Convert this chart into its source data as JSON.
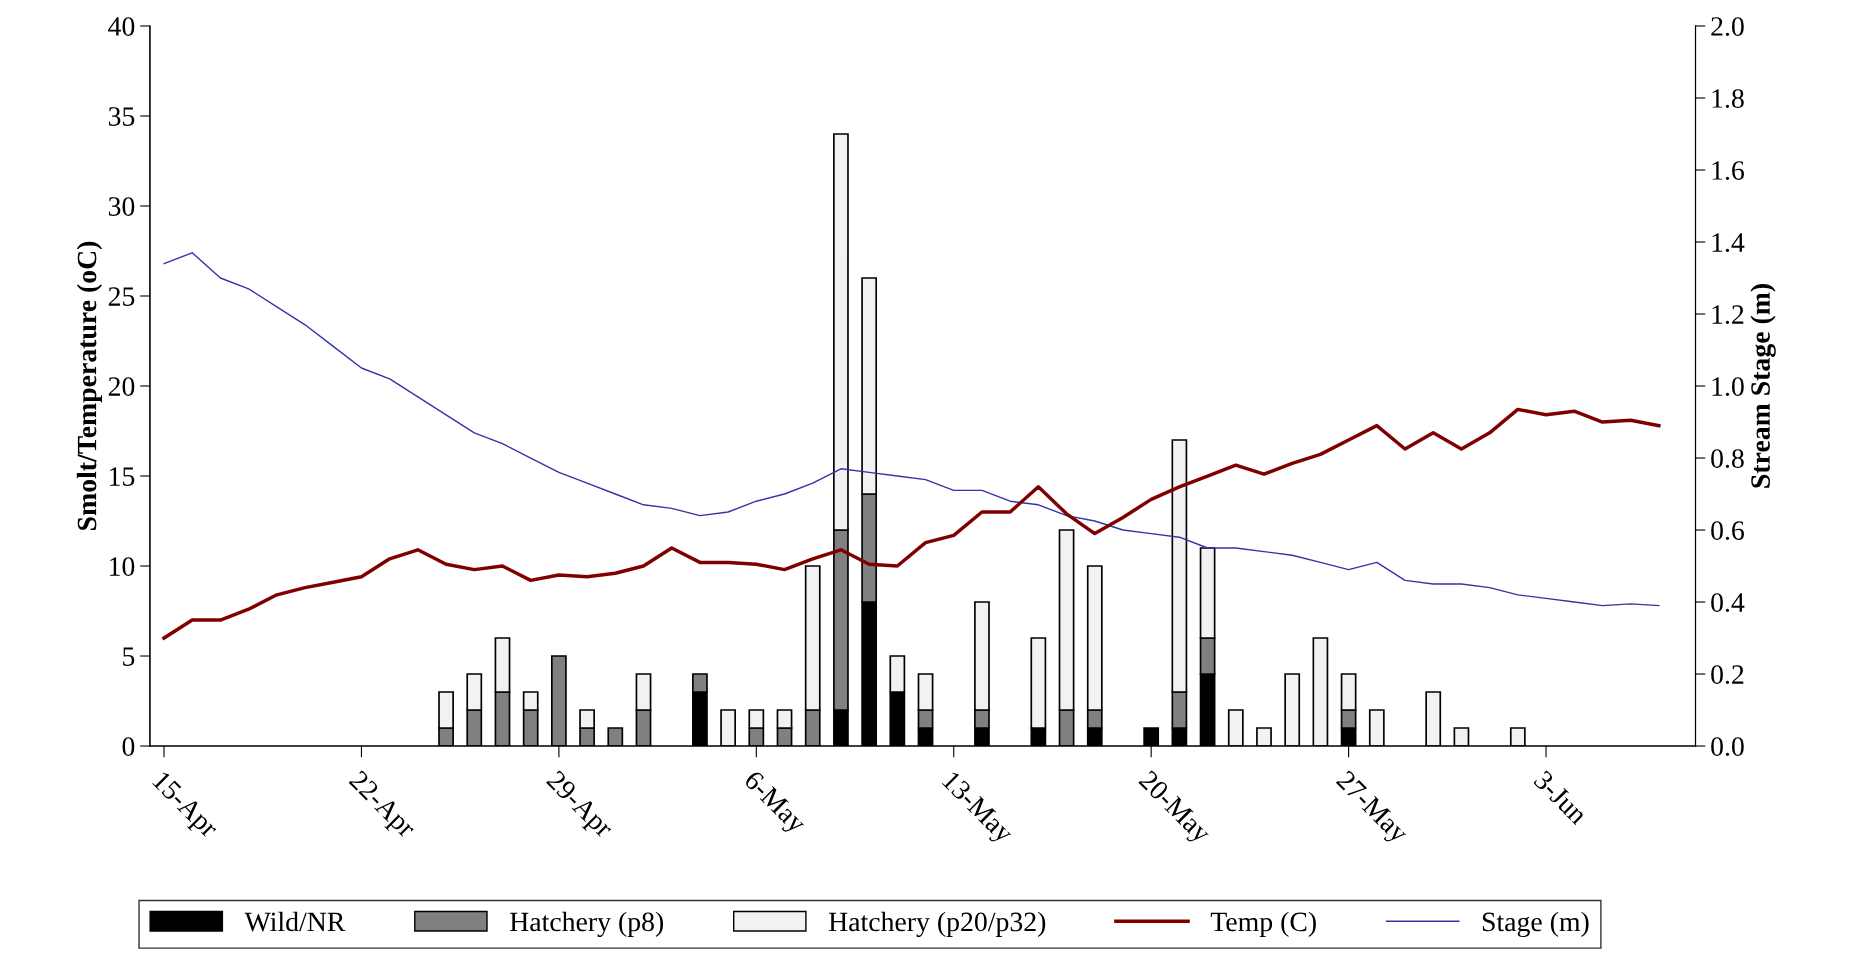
{
  "chart_data": {
    "type": "bar",
    "stacked": true,
    "ylabel": "Smolt/Temperature (oC)",
    "y2label": "Stream Stage (m)",
    "categories": [
      "15-Apr",
      null,
      null,
      null,
      null,
      null,
      null,
      "22-Apr",
      null,
      null,
      null,
      null,
      null,
      null,
      "29-Apr",
      null,
      null,
      null,
      null,
      null,
      null,
      "6-May",
      null,
      null,
      null,
      null,
      null,
      null,
      "13-May",
      null,
      null,
      null,
      null,
      null,
      null,
      "20-May",
      null,
      null,
      null,
      null,
      null,
      null,
      "27-May",
      null,
      null,
      null,
      null,
      null,
      null,
      "3-Jun",
      null,
      null,
      null,
      null
    ],
    "series": [
      {
        "name": "Wild/NR",
        "color": "#000000",
        "values": [
          null,
          null,
          null,
          null,
          null,
          null,
          null,
          null,
          null,
          null,
          null,
          null,
          null,
          null,
          null,
          null,
          null,
          null,
          null,
          3,
          null,
          null,
          null,
          null,
          2,
          8,
          3,
          1,
          null,
          1,
          null,
          1,
          null,
          1,
          null,
          1,
          1,
          4,
          null,
          null,
          null,
          null,
          1,
          null,
          null,
          null,
          null,
          null,
          null,
          null,
          null,
          null,
          null,
          null
        ]
      },
      {
        "name": "Hatchery (p8)",
        "color": "#808080",
        "values": [
          null,
          null,
          null,
          null,
          null,
          null,
          null,
          null,
          null,
          null,
          1,
          2,
          3,
          2,
          5,
          1,
          1,
          2,
          null,
          1,
          null,
          1,
          1,
          2,
          10,
          6,
          null,
          1,
          null,
          1,
          null,
          null,
          2,
          1,
          null,
          null,
          2,
          2,
          null,
          null,
          null,
          null,
          1,
          null,
          null,
          null,
          null,
          null,
          null,
          null,
          null,
          null,
          null,
          null
        ]
      },
      {
        "name": "Hatchery (p20/p32)",
        "color": "#f2f2f2",
        "values": [
          null,
          null,
          null,
          null,
          null,
          null,
          null,
          null,
          null,
          null,
          2,
          2,
          3,
          1,
          null,
          1,
          null,
          2,
          null,
          null,
          2,
          1,
          1,
          8,
          22,
          12,
          2,
          2,
          null,
          6,
          null,
          5,
          10,
          8,
          null,
          null,
          14,
          5,
          2,
          1,
          4,
          6,
          2,
          2,
          null,
          3,
          1,
          null,
          1,
          null,
          null,
          null,
          null,
          null
        ]
      },
      {
        "name": "Temp (C)",
        "type": "line",
        "color": "#800000",
        "values": [
          6.0,
          7.0,
          7.0,
          7.6,
          8.4,
          8.8,
          9.1,
          9.4,
          10.4,
          10.9,
          10.1,
          9.8,
          10.0,
          9.2,
          9.5,
          9.4,
          9.6,
          10.0,
          11.0,
          10.2,
          10.2,
          10.1,
          9.8,
          10.4,
          10.9,
          10.1,
          10.0,
          11.3,
          11.7,
          13.0,
          13.0,
          14.4,
          12.9,
          11.8,
          12.7,
          13.7,
          14.4,
          15.0,
          15.6,
          15.1,
          15.7,
          16.2,
          17.0,
          17.8,
          16.5,
          17.4,
          16.5,
          17.4,
          18.7,
          18.4,
          18.6,
          18.0,
          18.1,
          17.8
        ]
      },
      {
        "name": "Stage (m)",
        "type": "line",
        "axis": "y2",
        "color": "#3333aa",
        "values": [
          1.34,
          1.37,
          1.3,
          1.27,
          1.22,
          1.17,
          1.11,
          1.05,
          1.02,
          0.97,
          0.92,
          0.87,
          0.84,
          0.8,
          0.76,
          0.73,
          0.7,
          0.67,
          0.66,
          0.64,
          0.65,
          0.68,
          0.7,
          0.73,
          0.77,
          0.76,
          0.75,
          0.74,
          0.71,
          0.71,
          0.68,
          0.67,
          0.64,
          0.625,
          0.6,
          0.59,
          0.58,
          0.55,
          0.55,
          0.54,
          0.53,
          0.51,
          0.49,
          0.51,
          0.46,
          0.45,
          0.45,
          0.44,
          0.42,
          0.41,
          0.4,
          0.39,
          0.395,
          0.39
        ]
      }
    ],
    "ylim": [
      0,
      40
    ],
    "yticks": [
      0,
      5,
      10,
      15,
      20,
      25,
      30,
      35,
      40
    ],
    "y2lim": [
      0,
      2
    ],
    "y2ticks": [
      {
        "value": 0,
        "label": "0.0"
      },
      0.2,
      0.4,
      0.6,
      0.8,
      {
        "value": 1,
        "label": "1.0"
      },
      1.2,
      1.4,
      1.6,
      1.8,
      {
        "value": 2,
        "label": "2.0"
      }
    ],
    "legend": "bottom",
    "grid": false,
    "marker": "none",
    "line_style": "solid"
  }
}
